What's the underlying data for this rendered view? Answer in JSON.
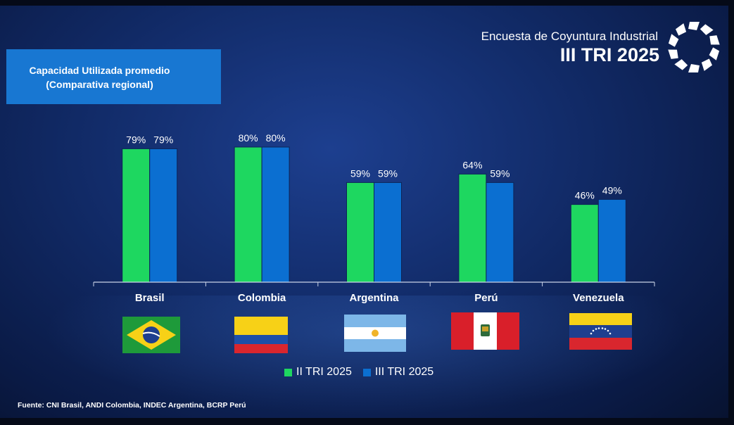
{
  "header": {
    "subtitle": "Encuesta de Coyuntura Industrial",
    "period": "III TRI 2025"
  },
  "title": {
    "line1": "Capacidad Utilizada promedio",
    "line2": "(Comparativa regional)"
  },
  "chart_data": {
    "type": "bar",
    "title": "Capacidad Utilizada promedio (Comparativa regional)",
    "categories": [
      "Brasil",
      "Colombia",
      "Argentina",
      "Perú",
      "Venezuela"
    ],
    "series": [
      {
        "name": "II TRI 2025",
        "color": "#1ed760",
        "values": [
          79,
          80,
          59,
          64,
          46
        ],
        "labels": [
          "79%",
          "80%",
          "59%",
          "64%",
          "46%"
        ]
      },
      {
        "name": "III TRI 2025",
        "color": "#0b6fd1",
        "values": [
          79,
          80,
          59,
          59,
          49
        ],
        "labels": [
          "79%",
          "80%",
          "59%",
          "59%",
          "49%"
        ]
      }
    ],
    "ylim": [
      0,
      100
    ],
    "xlabel": "",
    "ylabel": "",
    "grid": false,
    "legend": "bottom-center"
  },
  "legend": {
    "items": [
      {
        "label": "II TRI 2025",
        "color": "#1ed760"
      },
      {
        "label": "III TRI 2025",
        "color": "#0b6fd1"
      }
    ]
  },
  "flags": [
    "brazil-flag",
    "colombia-flag",
    "argentina-flag",
    "peru-flag",
    "venezuela-flag"
  ],
  "source": "Fuente: CNI Brasil, ANDI Colombia, INDEC Argentina, BCRP Perú",
  "logo": "industrial-survey-logo-icon"
}
